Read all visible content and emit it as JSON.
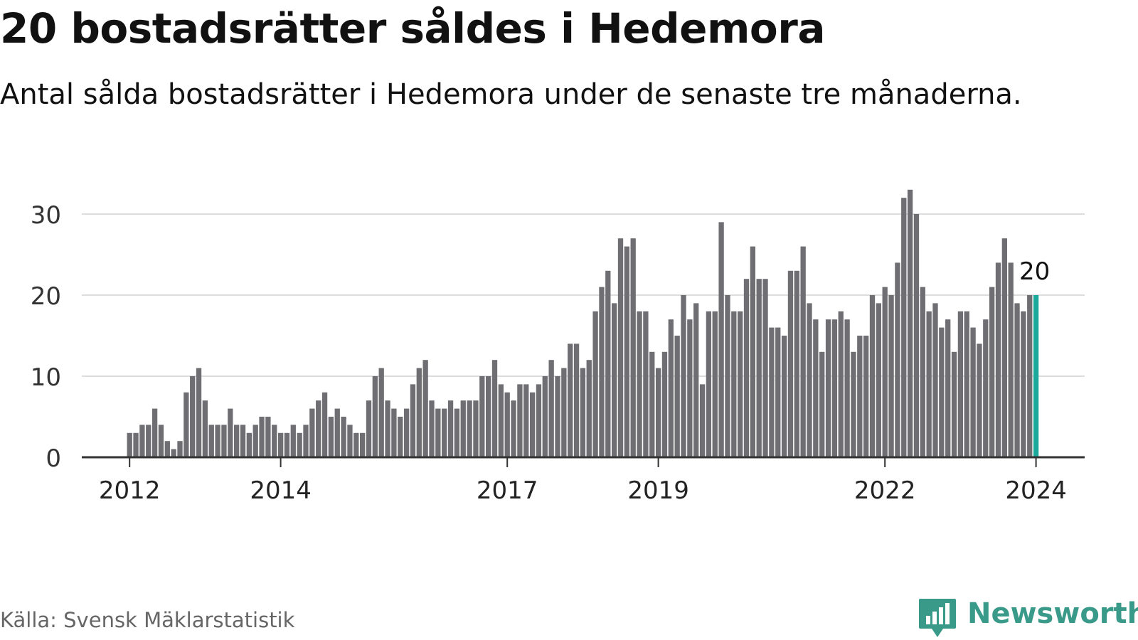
{
  "title": "20 bostadsrätter såldes i Hedemora",
  "subtitle": "Antal sålda bostadsrätter i Hedemora under de senaste tre månaderna.",
  "source": "Källa: Svensk Mäklarstatistik",
  "brand": "Newsworthy",
  "colors": {
    "bar": "#6e6e73",
    "highlight": "#1aa99b",
    "grid": "#dddddd",
    "axis": "#333333",
    "brand": "#3a9a8a"
  },
  "chart_data": {
    "type": "bar",
    "title": "20 bostadsrätter såldes i Hedemora",
    "xlabel": "",
    "ylabel": "",
    "ylim": [
      0,
      33
    ],
    "yticks": [
      "0",
      "10",
      "20",
      "30"
    ],
    "xticks": [
      {
        "label": "2012",
        "index": 0
      },
      {
        "label": "2014",
        "index": 24
      },
      {
        "label": "2017",
        "index": 60
      },
      {
        "label": "2019",
        "index": 84
      },
      {
        "label": "2022",
        "index": 120
      },
      {
        "label": "2024",
        "index": 144
      }
    ],
    "start": "2012-01",
    "values": [
      3,
      3,
      4,
      4,
      6,
      4,
      2,
      1,
      2,
      8,
      10,
      11,
      7,
      4,
      4,
      4,
      6,
      4,
      4,
      3,
      4,
      5,
      5,
      4,
      3,
      3,
      4,
      3,
      4,
      6,
      7,
      8,
      5,
      6,
      5,
      4,
      3,
      3,
      7,
      10,
      11,
      7,
      6,
      5,
      6,
      9,
      11,
      12,
      7,
      6,
      6,
      7,
      6,
      7,
      7,
      7,
      10,
      10,
      12,
      9,
      8,
      7,
      9,
      9,
      8,
      9,
      10,
      12,
      10,
      11,
      14,
      14,
      11,
      12,
      18,
      21,
      23,
      19,
      27,
      26,
      27,
      18,
      18,
      13,
      11,
      13,
      17,
      15,
      20,
      17,
      19,
      9,
      18,
      18,
      29,
      20,
      18,
      18,
      22,
      26,
      22,
      22,
      16,
      16,
      15,
      23,
      23,
      26,
      19,
      17,
      13,
      17,
      17,
      18,
      17,
      13,
      15,
      15,
      20,
      19,
      21,
      20,
      24,
      32,
      33,
      30,
      21,
      18,
      19,
      16,
      17,
      13,
      18,
      18,
      16,
      14,
      17,
      21,
      24,
      27,
      24,
      19,
      18,
      20,
      20
    ],
    "highlight_index": 144,
    "highlight_label": "20"
  }
}
